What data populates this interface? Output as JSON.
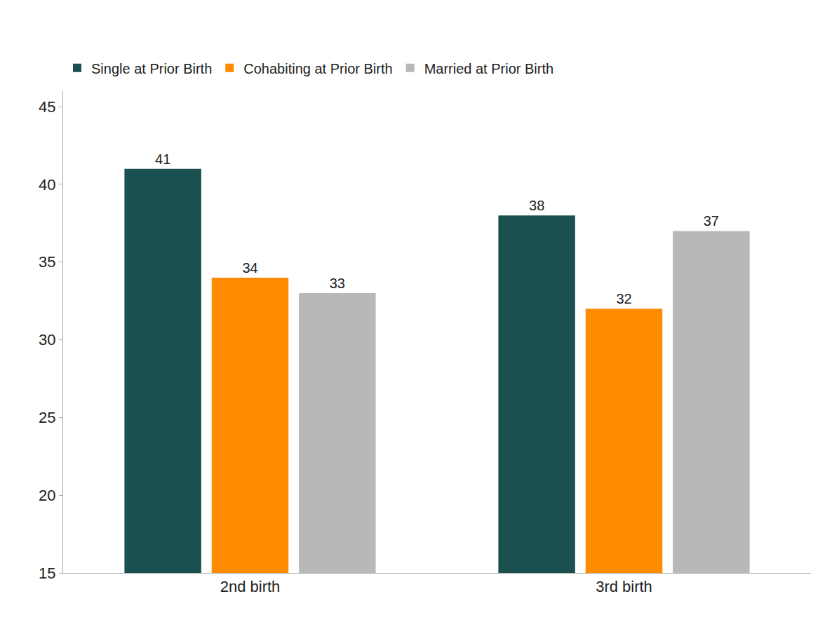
{
  "chart_data": {
    "type": "bar",
    "categories": [
      "2nd birth",
      "3rd birth"
    ],
    "series": [
      {
        "name": "Single at Prior Birth",
        "color": "#1a5050",
        "values": [
          41,
          38
        ]
      },
      {
        "name": "Cohabiting at Prior Birth",
        "color": "#ff8c00",
        "values": [
          34,
          32
        ]
      },
      {
        "name": "Married at Prior Birth",
        "color": "#b8b8b8",
        "values": [
          33,
          37
        ]
      }
    ],
    "ylim": [
      15,
      46
    ],
    "yticks": [
      15,
      20,
      25,
      30,
      35,
      40,
      45
    ],
    "grid": false,
    "legend": "top",
    "data_labels": true
  }
}
